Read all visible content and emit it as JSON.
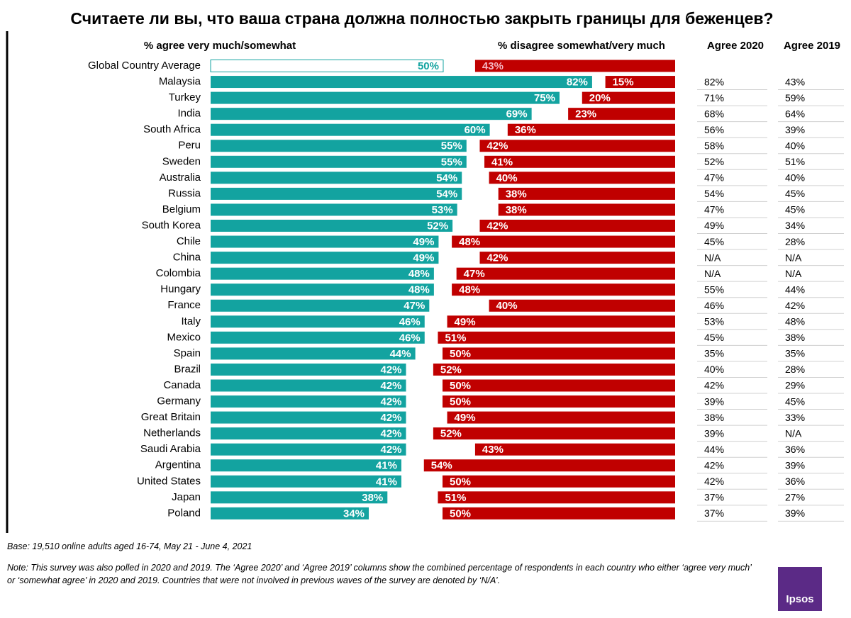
{
  "chart_data": {
    "type": "diverging",
    "title": "Считаете ли вы, что ваша страна должна полностью закрыть границы для беженцев?",
    "categories": [
      "Global Country Average",
      "Malaysia",
      "Turkey",
      "India",
      "South Africa",
      "Peru",
      "Sweden",
      "Australia",
      "Russia",
      "Belgium",
      "South Korea",
      "Chile",
      "China",
      "Colombia",
      "Hungary",
      "France",
      "Italy",
      "Mexico",
      "Spain",
      "Brazil",
      "Canada",
      "Germany",
      "Great Britain",
      "Netherlands",
      "Saudi Arabia",
      "Argentina",
      "United States",
      "Japan",
      "Poland"
    ],
    "series": [
      {
        "name": "% agree very much/somewhat",
        "color": "#13a3a0",
        "values": [
          50,
          82,
          75,
          69,
          60,
          55,
          55,
          54,
          54,
          53,
          52,
          49,
          49,
          48,
          48,
          47,
          46,
          46,
          44,
          42,
          42,
          42,
          42,
          42,
          42,
          41,
          41,
          38,
          34
        ],
        "value_labels": [
          "50%",
          "82%",
          "75%",
          "69%",
          "60%",
          "55%",
          "55%",
          "54%",
          "54%",
          "53%",
          "52%",
          "49%",
          "49%",
          "48%",
          "48%",
          "47%",
          "46%",
          "46%",
          "44%",
          "42%",
          "42%",
          "42%",
          "42%",
          "42%",
          "42%",
          "41%",
          "41%",
          "38%",
          "34%"
        ]
      },
      {
        "name": "% disagree somewhat/very much",
        "color": "#c00000",
        "values": [
          43,
          15,
          20,
          23,
          36,
          42,
          41,
          40,
          38,
          38,
          42,
          48,
          42,
          47,
          48,
          40,
          49,
          51,
          50,
          52,
          50,
          50,
          49,
          52,
          43,
          54,
          50,
          51,
          50
        ],
        "value_labels": [
          "43%",
          "15%",
          "20%",
          "23%",
          "36%",
          "42%",
          "41%",
          "40%",
          "38%",
          "38%",
          "42%",
          "48%",
          "42%",
          "47%",
          "48%",
          "40%",
          "49%",
          "51%",
          "50%",
          "52%",
          "50%",
          "50%",
          "49%",
          "52%",
          "43%",
          "54%",
          "50%",
          "51%",
          "50%"
        ]
      }
    ]
  },
  "table": {
    "columns": [
      "Agree 2020",
      "Agree 2019"
    ],
    "rows": [
      [
        "82%",
        "43%"
      ],
      [
        "71%",
        "59%"
      ],
      [
        "68%",
        "64%"
      ],
      [
        "56%",
        "39%"
      ],
      [
        "58%",
        "40%"
      ],
      [
        "52%",
        "51%"
      ],
      [
        "47%",
        "40%"
      ],
      [
        "54%",
        "45%"
      ],
      [
        "47%",
        "45%"
      ],
      [
        "49%",
        "34%"
      ],
      [
        "45%",
        "28%"
      ],
      [
        "N/A",
        "N/A"
      ],
      [
        "N/A",
        "N/A"
      ],
      [
        "55%",
        "44%"
      ],
      [
        "46%",
        "42%"
      ],
      [
        "53%",
        "48%"
      ],
      [
        "45%",
        "38%"
      ],
      [
        "35%",
        "35%"
      ],
      [
        "40%",
        "28%"
      ],
      [
        "42%",
        "29%"
      ],
      [
        "39%",
        "45%"
      ],
      [
        "38%",
        "33%"
      ],
      [
        "39%",
        "N/A"
      ],
      [
        "44%",
        "36%"
      ],
      [
        "42%",
        "39%"
      ],
      [
        "42%",
        "36%"
      ],
      [
        "37%",
        "27%"
      ],
      [
        "37%",
        "39%"
      ]
    ]
  },
  "footer": {
    "base": "Base: 19,510 online adults aged 16-74, May 21 - June 4, 2021",
    "note": "Note: This survey was also polled in 2020 and 2019. The ‘Agree 2020’ and ‘Agree 2019’ columns show the combined percentage of respondents in each country who either ‘agree very much’ or ‘somewhat agree’ in 2020 and 2019. Countries that were not involved in previous waves of the survey are denoted by ‘N/A’.",
    "logo": "Ipsos"
  }
}
